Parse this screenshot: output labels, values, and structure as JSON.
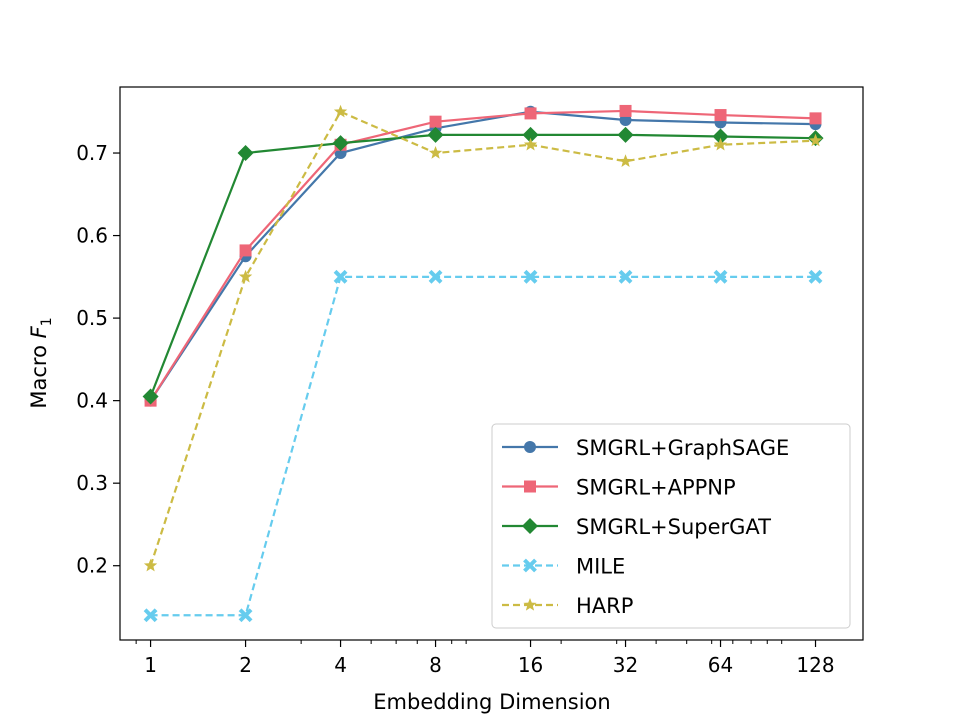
{
  "chart_data": {
    "type": "line",
    "x_scale": "log2",
    "x": [
      1,
      2,
      4,
      8,
      16,
      32,
      64,
      128
    ],
    "x_tick_labels": [
      "1",
      "2",
      "4",
      "8",
      "16",
      "32",
      "64",
      "128"
    ],
    "y_ticks": [
      0.2,
      0.3,
      0.4,
      0.5,
      0.6,
      0.7
    ],
    "y_tick_labels": [
      "0.2",
      "0.3",
      "0.4",
      "0.5",
      "0.6",
      "0.7"
    ],
    "xlim": [
      0.8,
      181
    ],
    "ylim": [
      0.11,
      0.78
    ],
    "xlabel": "Embedding Dimension",
    "ylabel_prefix": "Macro ",
    "ylabel_var": "F",
    "ylabel_sub": "1",
    "legend_position": "lower-right",
    "series": [
      {
        "name": "SMGRL+GraphSAGE",
        "color": "#4477aa",
        "dash": "solid",
        "marker": "circle",
        "values": [
          0.4,
          0.575,
          0.7,
          0.73,
          0.75,
          0.74,
          0.737,
          0.735
        ]
      },
      {
        "name": "SMGRL+APPNP",
        "color": "#ee6677",
        "dash": "solid",
        "marker": "square",
        "values": [
          0.4,
          0.582,
          0.71,
          0.738,
          0.748,
          0.751,
          0.746,
          0.742
        ]
      },
      {
        "name": "SMGRL+SuperGAT",
        "color": "#228833",
        "dash": "solid",
        "marker": "diamond",
        "values": [
          0.405,
          0.7,
          0.712,
          0.722,
          0.722,
          0.722,
          0.72,
          0.718
        ]
      },
      {
        "name": "MILE",
        "color": "#66ccee",
        "dash": "dashed",
        "marker": "x",
        "values": [
          0.14,
          0.14,
          0.55,
          0.55,
          0.55,
          0.55,
          0.55,
          0.55
        ]
      },
      {
        "name": "HARP",
        "color": "#ccbb44",
        "dash": "dashed",
        "marker": "star",
        "values": [
          0.2,
          0.55,
          0.75,
          0.7,
          0.71,
          0.69,
          0.71,
          0.715
        ]
      }
    ]
  }
}
